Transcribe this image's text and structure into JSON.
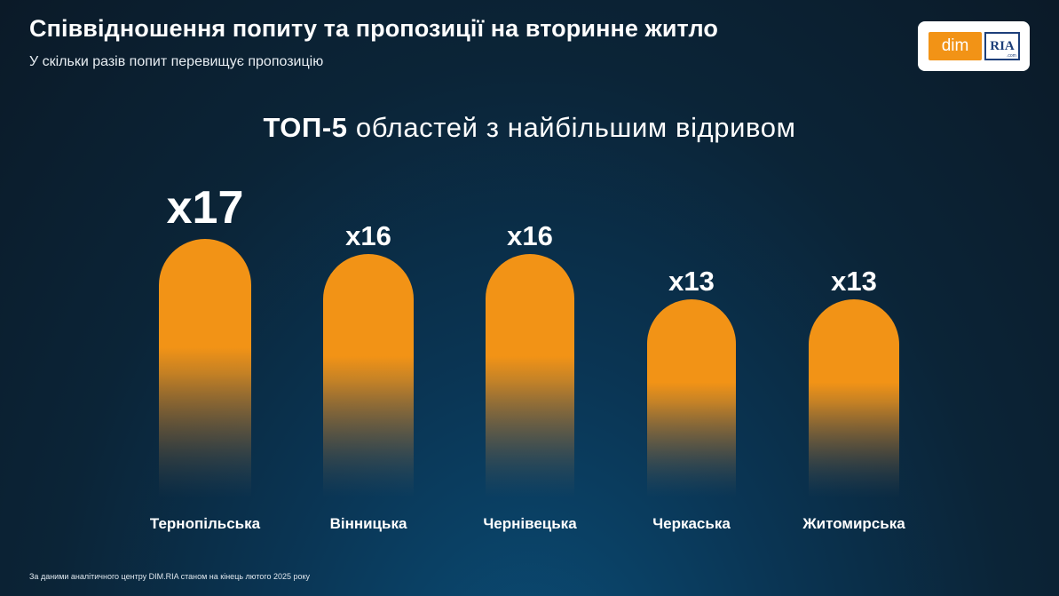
{
  "header": {
    "title": "Співвідношення попиту та пропозиції на вторинне житло",
    "subtitle": "У скільки разів попит перевищує пропозицію"
  },
  "logo": {
    "dim_text": "dim",
    "ria_text": "RIA",
    "com_text": ".com"
  },
  "chart_heading": {
    "bold": "ТОП-5",
    "rest": " областей з найбільшим відривом"
  },
  "chart_data": {
    "type": "bar",
    "categories": [
      "Тернопільська",
      "Вінницька",
      "Чернівецька",
      "Черкаська",
      "Житомирська"
    ],
    "values": [
      17,
      16,
      16,
      13,
      13
    ],
    "data_labels": [
      "x17",
      "x16",
      "x16",
      "x13",
      "x13"
    ],
    "title": "ТОП-5 областей з найбільшим відривом",
    "xlabel": "",
    "ylabel": "",
    "ylim": [
      0,
      17
    ],
    "grid": false,
    "bar_color": "#f29316"
  },
  "footnote": "За даними аналітичного центру DIM.RIA станом на кінець лютого 2025 року",
  "colors": {
    "accent": "#f29316",
    "brand_blue": "#1d3f7a",
    "background": "#0b2437"
  }
}
